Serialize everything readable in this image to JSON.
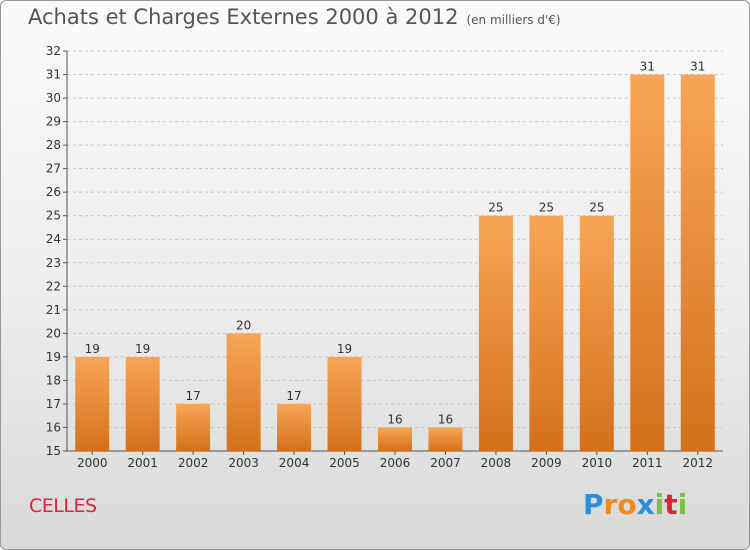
{
  "title": "Achats et Charges Externes 2000 à 2012",
  "unit": "(en milliers d'€)",
  "place": "CELLES",
  "logo": {
    "letters": [
      "P",
      "r",
      "o",
      "x",
      "i",
      "t",
      "i"
    ],
    "colors": [
      "#2e8fd6",
      "#f08a1c",
      "#f08a1c",
      "#2e8fd6",
      "#7cc142",
      "#d8263c",
      "#7cc142"
    ]
  },
  "colors": {
    "bar_top": "#f7a656",
    "bar_bottom": "#d4711a",
    "title": "#555555",
    "place": "#d8263c"
  },
  "chart_data": {
    "type": "bar",
    "categories": [
      "2000",
      "2001",
      "2002",
      "2003",
      "2004",
      "2005",
      "2006",
      "2007",
      "2008",
      "2009",
      "2010",
      "2011",
      "2012"
    ],
    "values": [
      19,
      19,
      17,
      20,
      17,
      19,
      16,
      16,
      25,
      25,
      25,
      31,
      31
    ],
    "ylim": [
      15,
      32
    ],
    "yticks": [
      15,
      16,
      17,
      18,
      19,
      20,
      21,
      22,
      23,
      24,
      25,
      26,
      27,
      28,
      29,
      30,
      31,
      32
    ],
    "grid": true
  }
}
